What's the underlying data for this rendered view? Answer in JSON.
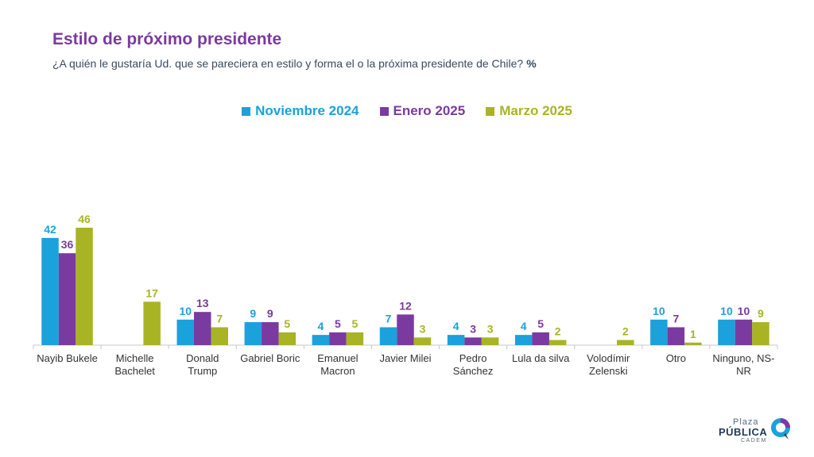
{
  "header": {
    "title": "Estilo de próximo presidente",
    "subtitle": "¿A quién le gustaría Ud. que se pareciera en estilo y forma el o la próxima presidente de Chile?",
    "unit": "%"
  },
  "logo": {
    "line1": "Plaza",
    "line2": "PÚBLICA",
    "line3": "CADEM",
    "icon": "speech-bubble-icon"
  },
  "colors": {
    "nov2024": "#1ba1dc",
    "ene2025": "#7b3aa0",
    "mar2025": "#a8b423"
  },
  "chart_data": {
    "type": "bar",
    "title": "Estilo de próximo presidente",
    "legend_position": "top-center",
    "grid": false,
    "categories": [
      [
        "Nayib Bukele"
      ],
      [
        "Michelle",
        "Bachelet"
      ],
      [
        "Donald",
        "Trump"
      ],
      [
        "Gabriel Boric"
      ],
      [
        "Emanuel",
        "Macron"
      ],
      [
        "Javier Milei"
      ],
      [
        "Pedro",
        "Sánchez"
      ],
      [
        "Lula da silva"
      ],
      [
        "Volodímir",
        "Zelenski"
      ],
      [
        "Otro"
      ],
      [
        "Ninguno, NS-",
        "NR"
      ]
    ],
    "series": [
      {
        "name": "Noviembre 2024",
        "color": "#1ba1dc",
        "values": [
          42,
          null,
          10,
          9,
          4,
          7,
          4,
          4,
          null,
          10,
          10
        ]
      },
      {
        "name": "Enero 2025",
        "color": "#7b3aa0",
        "values": [
          36,
          null,
          13,
          9,
          5,
          12,
          3,
          5,
          null,
          7,
          10
        ]
      },
      {
        "name": "Marzo 2025",
        "color": "#a8b423",
        "values": [
          46,
          17,
          7,
          5,
          5,
          3,
          3,
          2,
          2,
          1,
          9
        ]
      }
    ],
    "ylim": [
      0,
      46
    ]
  }
}
